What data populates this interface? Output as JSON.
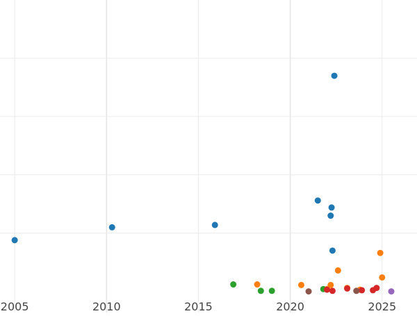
{
  "chart_data": {
    "type": "scatter",
    "title": "",
    "xlabel": "",
    "ylabel": "",
    "xlim": [
      2004.2,
      2026.9
    ],
    "ylim": [
      -0.5,
      25
    ],
    "grid": true,
    "x_ticks": [
      {
        "value": 2005,
        "label": "2005"
      },
      {
        "value": 2010,
        "label": "2010"
      },
      {
        "value": 2015,
        "label": "2015"
      },
      {
        "value": 2020,
        "label": "2020"
      },
      {
        "value": 2025,
        "label": "2025"
      }
    ],
    "y_gridlines": [
      0,
      5,
      10,
      15,
      20
    ],
    "series": [
      {
        "color": "#1f77b4",
        "points": [
          {
            "x": 2005.0,
            "y": 4.4
          },
          {
            "x": 2010.3,
            "y": 5.5
          },
          {
            "x": 2015.9,
            "y": 5.7
          },
          {
            "x": 2021.5,
            "y": 7.8
          },
          {
            "x": 2022.2,
            "y": 6.5
          },
          {
            "x": 2022.25,
            "y": 7.2
          },
          {
            "x": 2022.3,
            "y": 3.5
          },
          {
            "x": 2022.4,
            "y": 18.5
          }
        ]
      },
      {
        "color": "#ff7f0e",
        "points": [
          {
            "x": 2018.2,
            "y": 0.6
          },
          {
            "x": 2020.6,
            "y": 0.55
          },
          {
            "x": 2022.0,
            "y": 0.2
          },
          {
            "x": 2022.2,
            "y": 0.55
          },
          {
            "x": 2022.6,
            "y": 1.8
          },
          {
            "x": 2023.1,
            "y": 0.3
          },
          {
            "x": 2023.8,
            "y": 0.15
          },
          {
            "x": 2024.9,
            "y": 3.3
          },
          {
            "x": 2025.0,
            "y": 1.2
          }
        ]
      },
      {
        "color": "#2ca02c",
        "points": [
          {
            "x": 2016.9,
            "y": 0.6
          },
          {
            "x": 2018.4,
            "y": 0.05
          },
          {
            "x": 2019.0,
            "y": 0.05
          },
          {
            "x": 2021.8,
            "y": 0.2
          }
        ]
      },
      {
        "color": "#d62728",
        "points": [
          {
            "x": 2022.0,
            "y": 0.15
          },
          {
            "x": 2022.3,
            "y": 0.05
          },
          {
            "x": 2023.1,
            "y": 0.25
          },
          {
            "x": 2023.9,
            "y": 0.1
          },
          {
            "x": 2024.5,
            "y": 0.1
          },
          {
            "x": 2024.7,
            "y": 0.3
          }
        ]
      },
      {
        "color": "#8c564b",
        "points": [
          {
            "x": 2021.0,
            "y": 0.0
          },
          {
            "x": 2023.6,
            "y": 0.05
          }
        ]
      },
      {
        "color": "#9467bd",
        "points": [
          {
            "x": 2025.5,
            "y": 0.0
          }
        ]
      }
    ]
  }
}
